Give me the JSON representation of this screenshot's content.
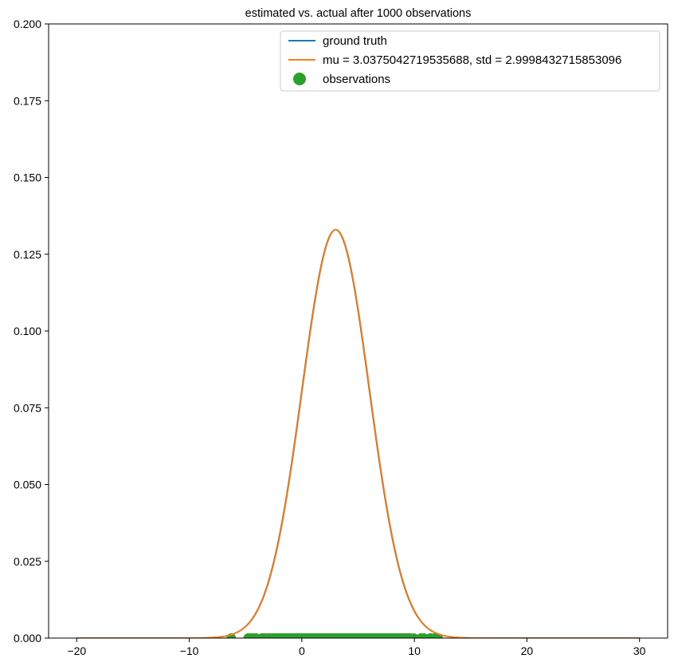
{
  "chart_data": {
    "type": "line",
    "title": "estimated vs. actual after 1000 observations",
    "xlabel": "",
    "ylabel": "",
    "xlim": [
      -22.5,
      32.5
    ],
    "ylim": [
      0.0,
      0.2
    ],
    "x_ticks": [
      -20,
      -10,
      0,
      10,
      20,
      30
    ],
    "x_tick_labels": [
      "−20",
      "−10",
      "0",
      "10",
      "20",
      "30"
    ],
    "y_ticks": [
      0.0,
      0.025,
      0.05,
      0.075,
      0.1,
      0.125,
      0.15,
      0.175,
      0.2
    ],
    "y_tick_labels": [
      "0.000",
      "0.025",
      "0.050",
      "0.075",
      "0.100",
      "0.125",
      "0.150",
      "0.175",
      "0.200"
    ],
    "grid": false,
    "legend_position": "top-right",
    "series": [
      {
        "name": "ground truth",
        "kind": "line",
        "color": "#1f77b4",
        "distribution": "normal",
        "mu": 3.0,
        "std": 3.0,
        "x_range": [
          -20,
          30
        ]
      },
      {
        "name": "mu = 3.0375042719535688, std = 2.9998432715853096",
        "kind": "line",
        "color": "#ff7f0e",
        "distribution": "normal",
        "mu": 3.0375042719535688,
        "std": 2.9998432715853096,
        "x_range": [
          -20,
          30
        ]
      },
      {
        "name": "observations",
        "kind": "scatter",
        "color": "#2ca02c",
        "count": 1000,
        "x_range": [
          -6.5,
          12.3
        ],
        "y_value": 0.0
      }
    ]
  }
}
